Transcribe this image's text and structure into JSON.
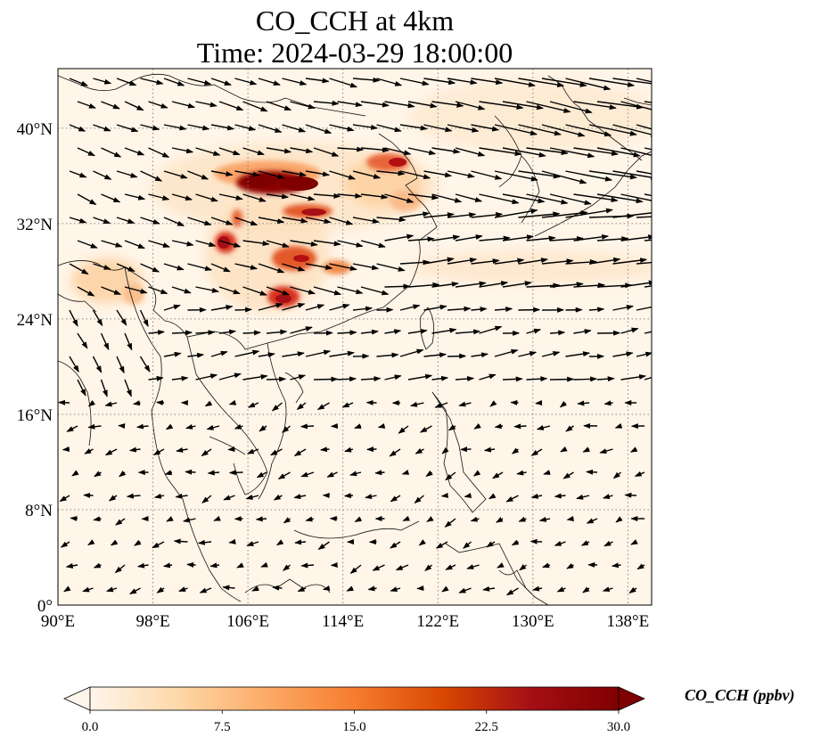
{
  "title": {
    "line1": "CO_CCH at 4km",
    "line2": "Time: 2024-03-29 18:00:00"
  },
  "map": {
    "extent": {
      "lon": [
        90,
        140
      ],
      "lat": [
        0,
        45
      ]
    },
    "gridlines": "dotted",
    "lon_ticks": [
      {
        "value": 90,
        "label": "90°E"
      },
      {
        "value": 98,
        "label": "98°E"
      },
      {
        "value": 106,
        "label": "106°E"
      },
      {
        "value": 114,
        "label": "114°E"
      },
      {
        "value": 122,
        "label": "122°E"
      },
      {
        "value": 130,
        "label": "130°E"
      },
      {
        "value": 138,
        "label": "138°E"
      }
    ],
    "lat_ticks": [
      {
        "value": 0,
        "label": "0°"
      },
      {
        "value": 8,
        "label": "8°N"
      },
      {
        "value": 16,
        "label": "16°N"
      },
      {
        "value": 24,
        "label": "24°N"
      },
      {
        "value": 32,
        "label": "32°N"
      },
      {
        "value": 40,
        "label": "40°N"
      }
    ],
    "colors": {
      "background": "#fff5e8",
      "gridline": "#888888",
      "coast": "#111111"
    }
  },
  "colorbar": {
    "title": "CO_CCH (ppbv)",
    "ticks": [
      "0.0",
      "7.5",
      "15.0",
      "22.5",
      "30.0"
    ],
    "range": [
      0,
      30
    ],
    "colormap": [
      "#fff5eb",
      "#fdd8a8",
      "#fdab67",
      "#f67d2f",
      "#d94801",
      "#a50f15",
      "#7f0000"
    ]
  }
}
